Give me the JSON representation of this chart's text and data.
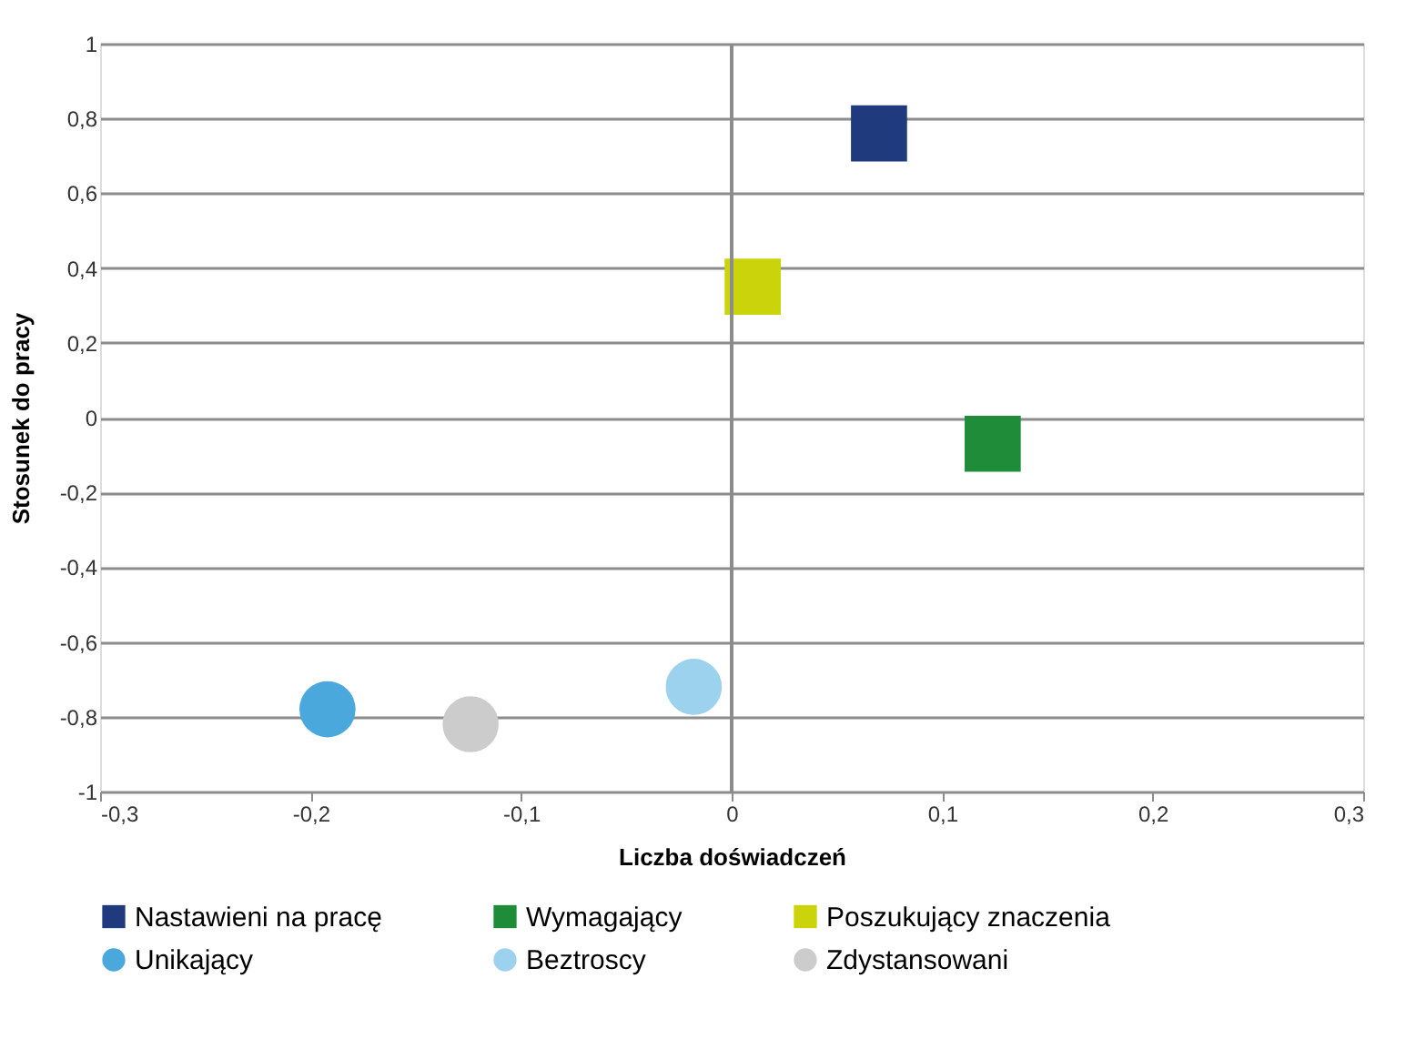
{
  "chart_data": {
    "type": "scatter",
    "xlabel": "Liczba doświadczeń",
    "ylabel": "Stosunek do pracy",
    "xlim": [
      -0.3,
      0.3
    ],
    "ylim": [
      -1,
      1
    ],
    "xticks": [
      {
        "value": -0.3,
        "label": "-0,3"
      },
      {
        "value": -0.2,
        "label": "-0,2"
      },
      {
        "value": -0.1,
        "label": "-0,1"
      },
      0,
      {
        "value": 0.1,
        "label": "0,1"
      },
      {
        "value": 0.2,
        "label": "0,2"
      },
      {
        "value": 0.3,
        "label": "0,3"
      }
    ],
    "yticks": [
      -1,
      {
        "value": -0.8,
        "label": "-0,8"
      },
      {
        "value": -0.6,
        "label": "-0,6"
      },
      {
        "value": -0.4,
        "label": "-0,4"
      },
      {
        "value": -0.2,
        "label": "-0,2"
      },
      0,
      {
        "value": 0.2,
        "label": "0,2"
      },
      {
        "value": 0.4,
        "label": "0,4"
      },
      {
        "value": 0.6,
        "label": "0,6"
      },
      {
        "value": 0.8,
        "label": "0,8"
      },
      1
    ],
    "grid": "y",
    "legend": "bottom",
    "ref_lines": [
      {
        "axis": "x",
        "value": 0,
        "color": "#8c8c8c"
      }
    ],
    "series": [
      {
        "name": "Nastawieni na pracę",
        "color": "#1f3a7d",
        "marker": "square",
        "x": [
          0.07
        ],
        "values": [
          0.76
        ]
      },
      {
        "name": "Wymagający",
        "color": "#1f8c3a",
        "marker": "square",
        "x": [
          0.124
        ],
        "values": [
          -0.07
        ]
      },
      {
        "name": "Poszukujący znaczenia",
        "color": "#cbd40a",
        "marker": "square",
        "x": [
          0.01
        ],
        "values": [
          0.35
        ]
      },
      {
        "name": "Unikający",
        "color": "#4aa8dd",
        "marker": "circle",
        "x": [
          -0.192
        ],
        "values": [
          -0.78
        ]
      },
      {
        "name": "Beztroscy",
        "color": "#9dd2ef",
        "marker": "circle",
        "x": [
          -0.018
        ],
        "values": [
          -0.72
        ]
      },
      {
        "name": "Zdystansowani",
        "color": "#cccccc",
        "marker": "circle",
        "x": [
          -0.124
        ],
        "values": [
          -0.82
        ]
      }
    ]
  }
}
